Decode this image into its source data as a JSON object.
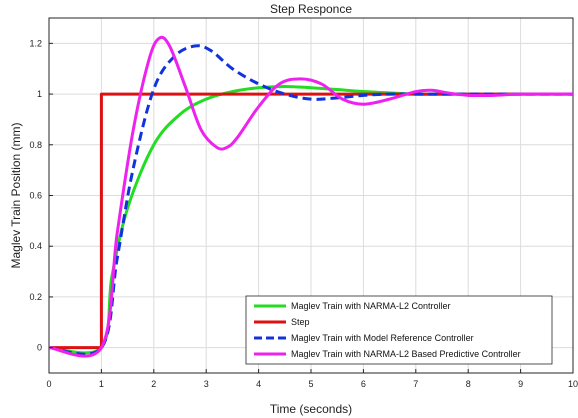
{
  "chart_data": {
    "type": "line",
    "title": "Step Responce",
    "xlabel": "Time (seconds)",
    "ylabel": "Maglev Train Position (mm)",
    "xlim": [
      0,
      10
    ],
    "ylim": [
      -0.1,
      1.3
    ],
    "xticks": [
      0,
      1,
      2,
      3,
      4,
      5,
      6,
      7,
      8,
      9,
      10
    ],
    "yticks": [
      0,
      0.2,
      0.4,
      0.6,
      0.8,
      1,
      1.2
    ],
    "xtick_labels": [
      "0",
      "1",
      "2",
      "3",
      "4",
      "5",
      "6",
      "7",
      "8",
      "9",
      "10"
    ],
    "ytick_labels": [
      "0",
      "0.2",
      "0.4",
      "0.6",
      "0.8",
      "1",
      "1.2"
    ],
    "grid": true,
    "legend_position": "bottom-right",
    "series": [
      {
        "name": "Maglev Train with NARMA-L2 Controller",
        "color": "#22dd22",
        "dash": "solid",
        "x": [
          0,
          1,
          1.2,
          1.5,
          2,
          2.5,
          3,
          3.5,
          4,
          4.5,
          5,
          5.5,
          6,
          7,
          8,
          9,
          10
        ],
        "y": [
          0,
          0,
          0.28,
          0.55,
          0.8,
          0.92,
          0.98,
          1.01,
          1.025,
          1.03,
          1.025,
          1.018,
          1.01,
          1.0,
          1.0,
          1.0,
          1.0
        ]
      },
      {
        "name": "Step",
        "color": "#dd1111",
        "dash": "solid",
        "x": [
          0,
          1,
          1,
          10
        ],
        "y": [
          0,
          0,
          1,
          1
        ]
      },
      {
        "name": "Maglev Train with Model Reference Controller",
        "color": "#1133dd",
        "dash": "dashed",
        "x": [
          0,
          1,
          1.3,
          1.6,
          2,
          2.4,
          2.8,
          3.1,
          3.5,
          4,
          4.5,
          5,
          5.5,
          6,
          6.5,
          7,
          7.5,
          8,
          9,
          10
        ],
        "y": [
          0,
          0,
          0.35,
          0.7,
          1.02,
          1.15,
          1.19,
          1.17,
          1.1,
          1.04,
          1.0,
          0.98,
          0.985,
          0.995,
          1.0,
          1.0,
          1.0,
          1.0,
          1.0,
          1.0
        ]
      },
      {
        "name": "Maglev Train with NARMA-L2 Based Predictive Controller",
        "color": "#ee22ee",
        "dash": "solid",
        "x": [
          0,
          1,
          1.3,
          1.6,
          1.9,
          2.1,
          2.3,
          2.6,
          2.9,
          3.2,
          3.4,
          3.6,
          4,
          4.4,
          4.8,
          5.2,
          5.6,
          6,
          6.5,
          7,
          7.3,
          7.6,
          8,
          8.5,
          9,
          10
        ],
        "y": [
          0,
          0,
          0.45,
          0.85,
          1.13,
          1.22,
          1.19,
          1.03,
          0.86,
          0.79,
          0.79,
          0.83,
          0.95,
          1.04,
          1.06,
          1.04,
          0.98,
          0.96,
          0.98,
          1.01,
          1.015,
          1.005,
          0.995,
          0.995,
          1.0,
          1.0
        ]
      }
    ]
  }
}
